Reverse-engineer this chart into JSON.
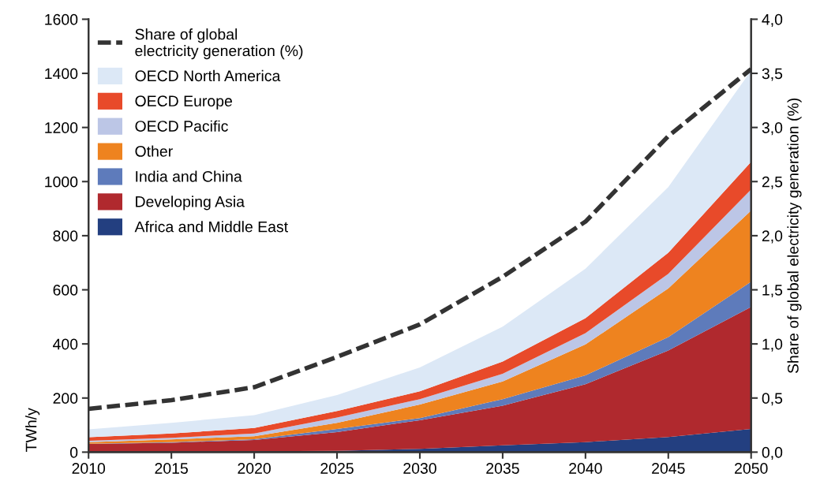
{
  "chart_data": {
    "type": "area",
    "stacked": true,
    "ylabel": "TWh/y",
    "y2label": "Share of global electricity generation (%)",
    "x": [
      2010,
      2015,
      2020,
      2025,
      2030,
      2035,
      2040,
      2045,
      2050
    ],
    "xlim": [
      2010,
      2050
    ],
    "xticks": [
      2010,
      2015,
      2020,
      2025,
      2030,
      2035,
      2040,
      2045,
      2050
    ],
    "ylim": [
      0,
      1600
    ],
    "yticks": [
      0,
      200,
      400,
      600,
      800,
      1000,
      1200,
      1400,
      1600
    ],
    "y2lim": [
      0,
      4
    ],
    "y2ticks": [
      {
        "value": 0,
        "label": "0,0"
      },
      {
        "value": 0.5,
        "label": "0,5"
      },
      {
        "value": 1,
        "label": "1,0"
      },
      {
        "value": 1.5,
        "label": "1,5"
      },
      {
        "value": 2,
        "label": "2,0"
      },
      {
        "value": 2.5,
        "label": "2,5"
      },
      {
        "value": 3,
        "label": "3,0"
      },
      {
        "value": 3.5,
        "label": "3,5"
      },
      {
        "value": 4,
        "label": "4,0"
      }
    ],
    "grid": false,
    "legend": "top left",
    "series": [
      {
        "name": "Africa and Middle East",
        "color": "#233f80",
        "values": [
          1,
          2,
          3,
          5,
          12,
          25,
          37,
          56,
          86
        ]
      },
      {
        "name": "Developing Asia",
        "color": "#b0292e",
        "values": [
          29,
          33,
          42,
          69,
          106,
          147,
          214,
          320,
          451
        ]
      },
      {
        "name": "India and China",
        "color": "#5e7bbb",
        "values": [
          1,
          2,
          3,
          12,
          8,
          24,
          33,
          49,
          93
        ]
      },
      {
        "name": "Other",
        "color": "#ee831f",
        "values": [
          6,
          10,
          11,
          22,
          50,
          65,
          114,
          180,
          263
        ]
      },
      {
        "name": "OECD Pacific",
        "color": "#bcc6e6",
        "values": [
          5,
          6,
          10,
          20,
          20,
          29,
          42,
          54,
          78
        ]
      },
      {
        "name": "OECD Europe",
        "color": "#e84a2a",
        "values": [
          13,
          16,
          20,
          24,
          29,
          45,
          55,
          78,
          102
        ]
      },
      {
        "name": "OECD North America",
        "color": "#dce8f6",
        "values": [
          29,
          39,
          48,
          59,
          88,
          129,
          183,
          243,
          337
        ]
      },
      {
        "name": "Share of global electricity generation (%)",
        "type": "line",
        "axis": "y2",
        "line_style": "dashed",
        "color": "#333333",
        "values": [
          0.4,
          0.48,
          0.6,
          0.88,
          1.18,
          1.62,
          2.13,
          2.92,
          3.54
        ]
      }
    ]
  }
}
